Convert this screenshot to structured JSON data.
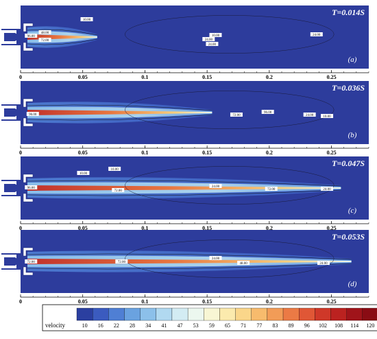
{
  "panels": [
    {
      "time": "T=0.014S",
      "label": "(a)",
      "contour_labels": [
        "96.00",
        "48.00",
        "72.00",
        "10.00",
        "24.00",
        "10.00",
        "24.00",
        "24.00"
      ]
    },
    {
      "time": "T=0.036S",
      "label": "(b)",
      "contour_labels": [
        "96.00",
        "72.00",
        "96.00",
        "24.00",
        "10.00"
      ]
    },
    {
      "time": "T=0.047S",
      "label": "(c)",
      "contour_labels": [
        "96.00",
        "10.00",
        "10.00",
        "72.00",
        "24.00",
        "72.00",
        "24.00"
      ]
    },
    {
      "time": "T=0.053S",
      "label": "(d)",
      "contour_labels": [
        "72.00",
        "72.00",
        "24.00",
        "48.00",
        "24.00"
      ]
    }
  ],
  "axis": {
    "ticks": [
      "0",
      "0.05",
      "0.1",
      "0.15",
      "0.2",
      "0.25"
    ],
    "tick_values": [
      0,
      0.05,
      0.1,
      0.15,
      0.2,
      0.25
    ],
    "range": [
      0,
      0.28
    ]
  },
  "colorbar": {
    "title": "velocity",
    "levels": [
      "10",
      "16",
      "22",
      "28",
      "34",
      "41",
      "47",
      "53",
      "59",
      "65",
      "71",
      "77",
      "83",
      "89",
      "96",
      "102",
      "108",
      "114",
      "120"
    ],
    "colors": [
      "#2b3fa0",
      "#3b5bbf",
      "#4f7fd4",
      "#6aa2e0",
      "#8cc0ea",
      "#b1d9f0",
      "#d3ecf3",
      "#ecf7ef",
      "#f8f6d4",
      "#fbeaad",
      "#fad68a",
      "#f7bb6d",
      "#f29c57",
      "#eb7a45",
      "#e05736",
      "#cf3829",
      "#bb2220",
      "#a0141a",
      "#8a0c14"
    ]
  },
  "colors": {
    "domain_background": "#2d3c9c",
    "nozzle": "#2d3c9c",
    "jet_core": "#c0302a"
  }
}
